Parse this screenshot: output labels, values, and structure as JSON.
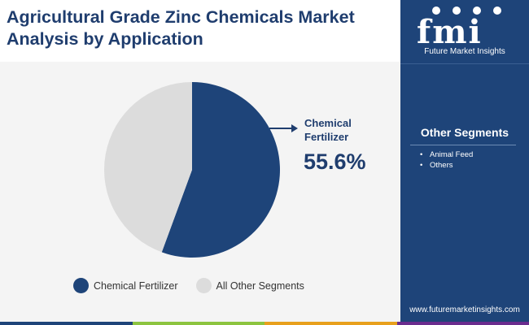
{
  "title_lines": [
    "Agricultural Grade Zinc Chemicals Market",
    "Analysis by Application"
  ],
  "colors": {
    "title": "#1f3d6e",
    "accent": "#1e4479",
    "slice_primary": "#1e4479",
    "slice_secondary": "#dcdcdc",
    "panel_background": "#f4f4f4",
    "bottom_bar": [
      "#1e4479",
      "#8cc43f",
      "#e8a01c",
      "#6a2c8e"
    ]
  },
  "brand": {
    "wordmark": "fmi",
    "name": "Future Market Insights",
    "website": "www.futuremarketinsights.com"
  },
  "other_segments": {
    "title": "Other Segments",
    "items": [
      "Animal Feed",
      "Others"
    ]
  },
  "callout": {
    "label": "Chemical Fertilizer",
    "value": "55.6%"
  },
  "chart_data": {
    "type": "pie",
    "title": "Agricultural Grade Zinc Chemicals Market Analysis by Application",
    "slices": [
      {
        "label": "Chemical Fertilizer",
        "value": 55.6,
        "color": "#1e4479"
      },
      {
        "label": "All Other Segments",
        "value": 44.4,
        "color": "#dcdcdc"
      }
    ],
    "start_angle_deg": 0,
    "direction": "clockwise",
    "legend_position": "bottom",
    "data_labels": [
      {
        "slice": "Chemical Fertilizer",
        "text": "55.6%"
      }
    ]
  }
}
